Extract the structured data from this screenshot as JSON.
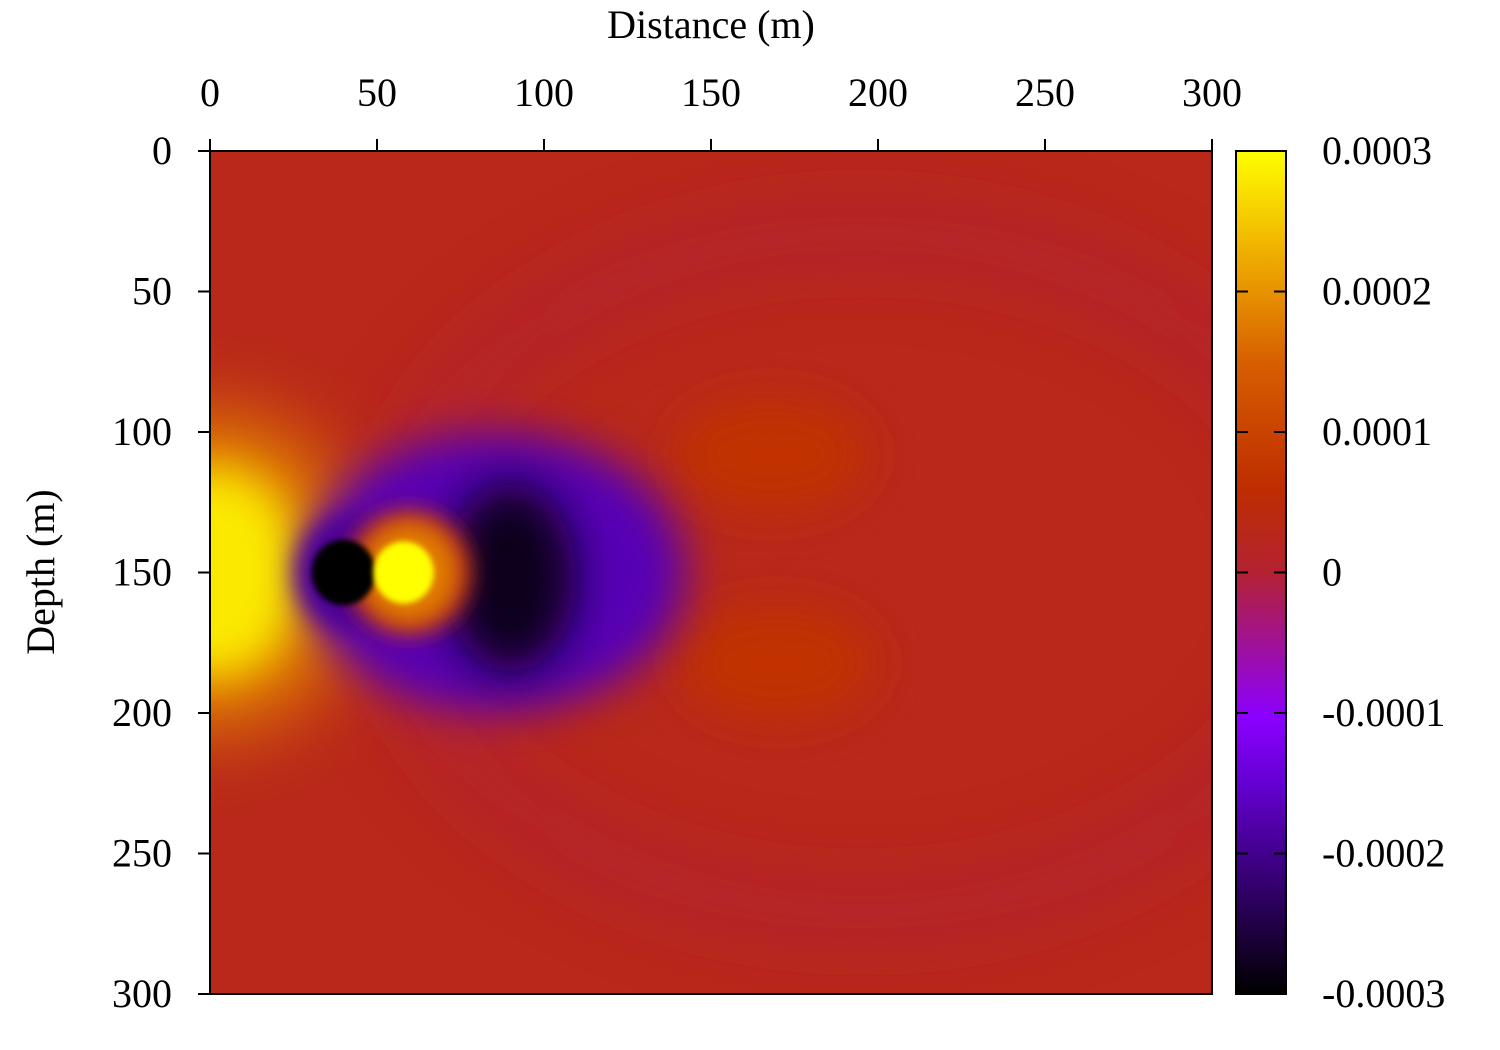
{
  "chart_data": {
    "type": "heatmap",
    "title": "",
    "xlabel": "Distance (m)",
    "ylabel": "Depth (m)",
    "xlim": [
      0,
      300
    ],
    "ylim": [
      0,
      300
    ],
    "y_inverted": true,
    "x_axis_position": "top",
    "x_ticks": [
      0,
      50,
      100,
      150,
      200,
      250,
      300
    ],
    "y_ticks": [
      0,
      50,
      100,
      150,
      200,
      250,
      300
    ],
    "x_tick_labels": [
      "0",
      "50",
      "100",
      "150",
      "200",
      "250",
      "300"
    ],
    "y_tick_labels": [
      "0",
      "50",
      "100",
      "150",
      "200",
      "250",
      "300"
    ],
    "colorbar": {
      "range": [
        -0.0003,
        0.0003
      ],
      "ticks": [
        0.0003,
        0.0002,
        0.0001,
        0,
        -0.0001,
        -0.0002,
        -0.0003
      ],
      "tick_labels": [
        "0.0003",
        "0.0002",
        "0.0001",
        "0",
        "-0.0001",
        "-0.0002",
        "-0.0003"
      ],
      "palette": "black-purple-red-orange-yellow",
      "position": "right"
    },
    "background_value": 3e-05,
    "features": [
      {
        "kind": "positive-lobe",
        "x": 3,
        "y": 150,
        "value": 0.00028
      },
      {
        "kind": "negative-core",
        "x": 40,
        "y": 150,
        "value": -0.0003
      },
      {
        "kind": "positive-core",
        "x": 58,
        "y": 150,
        "value": 0.0003
      },
      {
        "kind": "negative-arc",
        "x": 90,
        "y": 150,
        "value": -0.00028
      },
      {
        "kind": "negative-halo",
        "x": 195,
        "y": 150,
        "value": -1e-05
      },
      {
        "kind": "positive-patch",
        "x": 168,
        "y": 108,
        "value": 7e-05
      },
      {
        "kind": "positive-patch",
        "x": 170,
        "y": 182,
        "value": 7e-05
      }
    ],
    "grid": false,
    "legend": "none"
  }
}
